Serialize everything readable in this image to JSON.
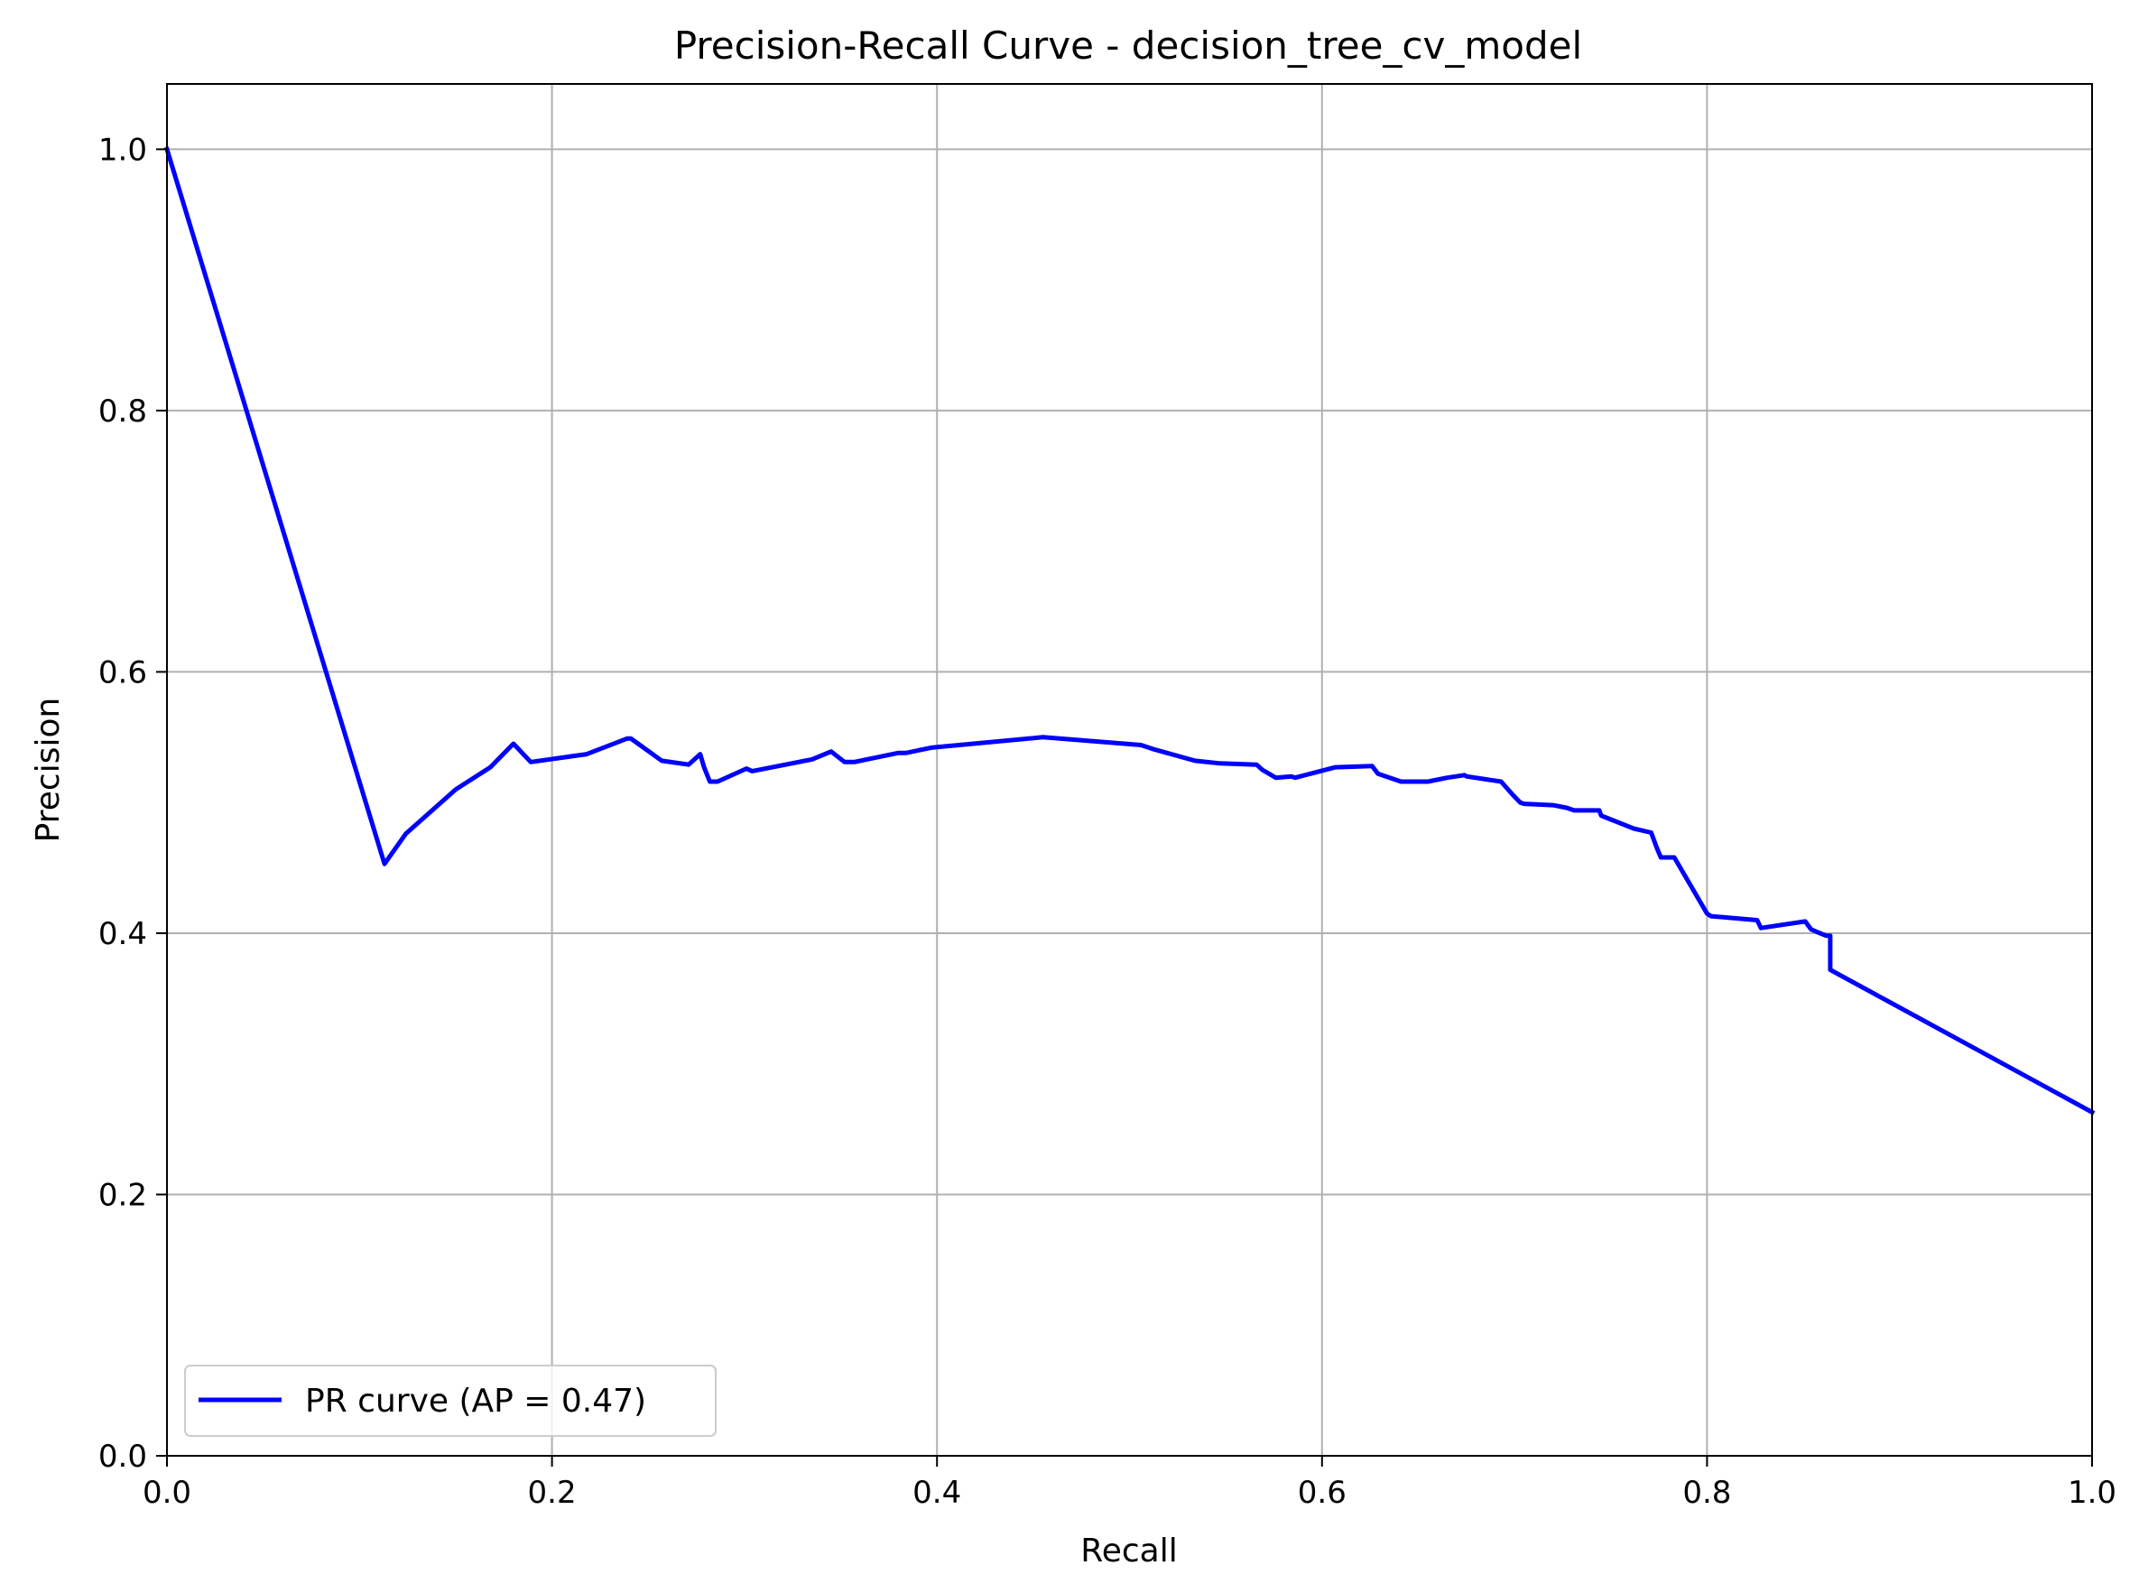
{
  "chart_data": {
    "type": "line",
    "title": "Precision-Recall Curve - decision_tree_cv_model",
    "xlabel": "Recall",
    "ylabel": "Precision",
    "xlim": [
      0.0,
      1.0
    ],
    "ylim": [
      0.0,
      1.05
    ],
    "xticks": [
      0.0,
      0.2,
      0.4,
      0.6,
      0.8,
      1.0
    ],
    "xtick_labels": [
      "0.0",
      "0.2",
      "0.4",
      "0.6",
      "0.8",
      "1.0"
    ],
    "yticks": [
      0.0,
      0.2,
      0.4,
      0.6,
      0.8,
      1.0
    ],
    "ytick_labels": [
      "0.0",
      "0.2",
      "0.4",
      "0.6",
      "0.8",
      "1.0"
    ],
    "grid": true,
    "legend_position": "lower-left",
    "series": [
      {
        "name": "PR curve (AP = 0.47)",
        "color": "#0000ff",
        "x": [
          0.0,
          0.113,
          0.124,
          0.15,
          0.168,
          0.18,
          0.189,
          0.218,
          0.239,
          0.241,
          0.257,
          0.271,
          0.277,
          0.279,
          0.282,
          0.286,
          0.301,
          0.304,
          0.335,
          0.345,
          0.352,
          0.357,
          0.38,
          0.384,
          0.397,
          0.455,
          0.506,
          0.512,
          0.534,
          0.547,
          0.566,
          0.569,
          0.576,
          0.584,
          0.586,
          0.607,
          0.626,
          0.629,
          0.641,
          0.655,
          0.665,
          0.674,
          0.675,
          0.693,
          0.699,
          0.703,
          0.705,
          0.72,
          0.727,
          0.731,
          0.734,
          0.744,
          0.745,
          0.762,
          0.771,
          0.774,
          0.776,
          0.782,
          0.783,
          0.8,
          0.802,
          0.826,
          0.828,
          0.851,
          0.854,
          0.857,
          0.862,
          0.864,
          0.864,
          1.0
        ],
        "y": [
          1.0,
          0.453,
          0.476,
          0.51,
          0.527,
          0.545,
          0.531,
          0.537,
          0.549,
          0.549,
          0.532,
          0.529,
          0.537,
          0.527,
          0.516,
          0.516,
          0.526,
          0.524,
          0.533,
          0.539,
          0.531,
          0.531,
          0.538,
          0.538,
          0.542,
          0.55,
          0.544,
          0.541,
          0.532,
          0.53,
          0.529,
          0.525,
          0.519,
          0.52,
          0.519,
          0.527,
          0.528,
          0.522,
          0.516,
          0.516,
          0.519,
          0.521,
          0.52,
          0.516,
          0.506,
          0.5,
          0.499,
          0.498,
          0.496,
          0.494,
          0.494,
          0.494,
          0.49,
          0.48,
          0.477,
          0.465,
          0.458,
          0.458,
          0.458,
          0.415,
          0.413,
          0.41,
          0.404,
          0.409,
          0.403,
          0.401,
          0.398,
          0.398,
          0.372,
          0.263
        ]
      }
    ]
  }
}
